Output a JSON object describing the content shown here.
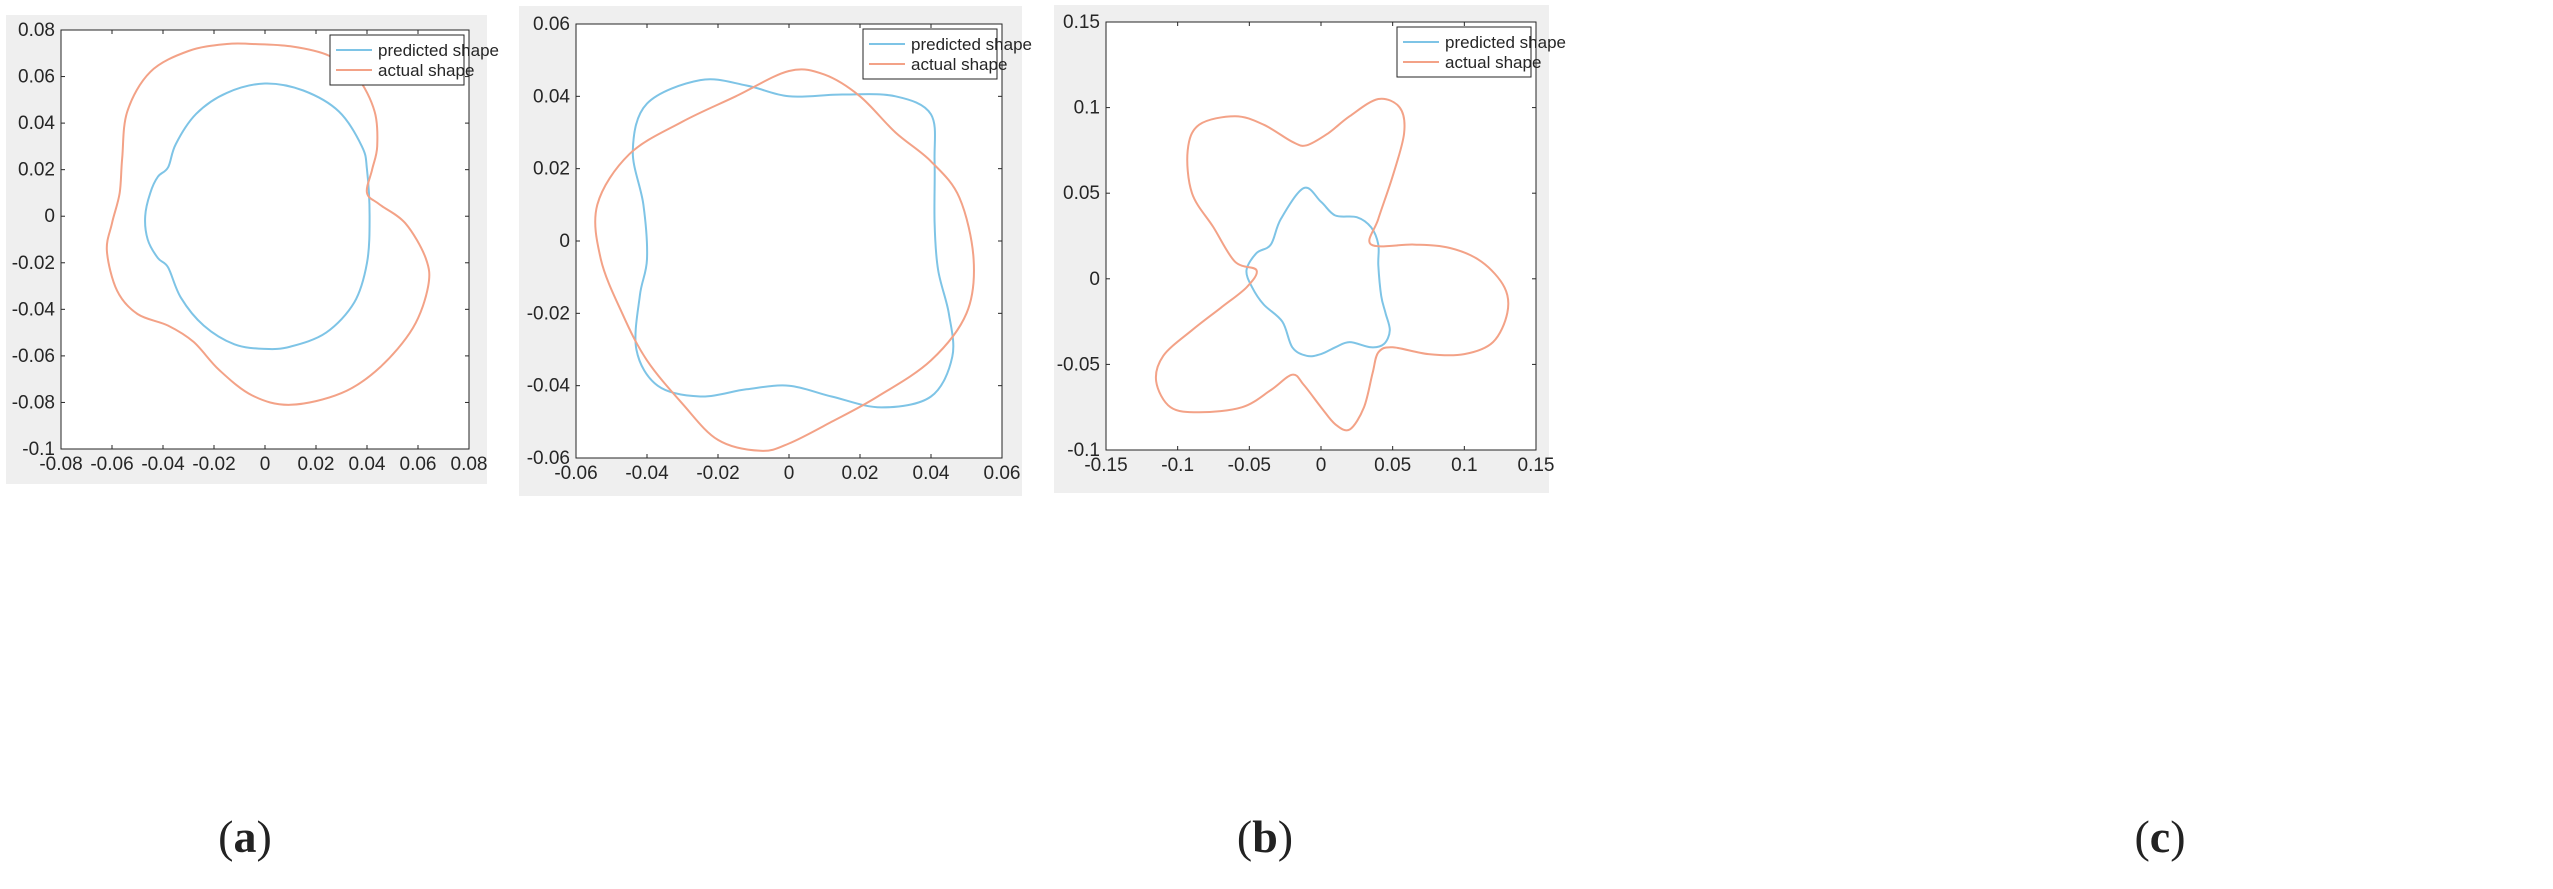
{
  "colors": {
    "predicted": "#7ec4e6",
    "actual": "#f3a287",
    "axis": "#262626",
    "panel_bg": "#efefef",
    "plot_bg": "#ffffff"
  },
  "chart_data": [
    {
      "type": "line",
      "caption": {
        "open": "(",
        "letter": "a",
        "close": ")"
      },
      "xlim": [
        -0.08,
        0.08
      ],
      "ylim": [
        -0.1,
        0.08
      ],
      "xticks": [
        -0.08,
        -0.06,
        -0.04,
        -0.02,
        0,
        0.02,
        0.04,
        0.06,
        0.08
      ],
      "yticks": [
        -0.1,
        -0.08,
        -0.06,
        -0.04,
        -0.02,
        0,
        0.02,
        0.04,
        0.06,
        0.08
      ],
      "xtick_labels": [
        "-0.08",
        "-0.06",
        "-0.04",
        "-0.02",
        "0",
        "0.02",
        "0.04",
        "0.06",
        "0.08"
      ],
      "ytick_labels": [
        "-0.1",
        "-0.08",
        "-0.06",
        "-0.04",
        "-0.02",
        "0",
        "0.02",
        "0.04",
        "0.06",
        "0.08"
      ],
      "grid": false,
      "legend_position": "top-right",
      "series": [
        {
          "name": "predicted shape",
          "color": "predicted",
          "closed": true,
          "points": [
            [
              0.0,
              0.057
            ],
            [
              0.015,
              0.054
            ],
            [
              0.029,
              0.045
            ],
            [
              0.038,
              0.03
            ],
            [
              0.04,
              0.02
            ],
            [
              0.041,
              0.0
            ],
            [
              0.04,
              -0.02
            ],
            [
              0.035,
              -0.037
            ],
            [
              0.024,
              -0.05
            ],
            [
              0.01,
              -0.056
            ],
            [
              0.0,
              -0.057
            ],
            [
              -0.012,
              -0.055
            ],
            [
              -0.024,
              -0.047
            ],
            [
              -0.033,
              -0.035
            ],
            [
              -0.038,
              -0.022
            ],
            [
              -0.042,
              -0.018
            ],
            [
              -0.046,
              -0.01
            ],
            [
              -0.047,
              0.0
            ],
            [
              -0.045,
              0.01
            ],
            [
              -0.042,
              0.017
            ],
            [
              -0.038,
              0.021
            ],
            [
              -0.035,
              0.031
            ],
            [
              -0.027,
              0.044
            ],
            [
              -0.015,
              0.053
            ]
          ]
        },
        {
          "name": "actual shape",
          "color": "actual",
          "closed": true,
          "points": [
            [
              -0.005,
              0.074
            ],
            [
              0.01,
              0.073
            ],
            [
              0.025,
              0.069
            ],
            [
              0.036,
              0.06
            ],
            [
              0.043,
              0.045
            ],
            [
              0.044,
              0.03
            ],
            [
              0.042,
              0.02
            ],
            [
              0.04,
              0.01
            ],
            [
              0.045,
              0.005
            ],
            [
              0.055,
              -0.003
            ],
            [
              0.063,
              -0.018
            ],
            [
              0.064,
              -0.03
            ],
            [
              0.058,
              -0.048
            ],
            [
              0.045,
              -0.065
            ],
            [
              0.03,
              -0.076
            ],
            [
              0.01,
              -0.081
            ],
            [
              -0.005,
              -0.077
            ],
            [
              -0.018,
              -0.066
            ],
            [
              -0.028,
              -0.054
            ],
            [
              -0.038,
              -0.047
            ],
            [
              -0.05,
              -0.042
            ],
            [
              -0.058,
              -0.032
            ],
            [
              -0.062,
              -0.015
            ],
            [
              -0.06,
              -0.003
            ],
            [
              -0.057,
              0.01
            ],
            [
              -0.056,
              0.025
            ],
            [
              -0.054,
              0.045
            ],
            [
              -0.045,
              0.062
            ],
            [
              -0.03,
              0.071
            ],
            [
              -0.015,
              0.074
            ]
          ]
        }
      ]
    },
    {
      "type": "line",
      "caption": {
        "open": "(",
        "letter": "b",
        "close": ")"
      },
      "xlim": [
        -0.06,
        0.06
      ],
      "ylim": [
        -0.06,
        0.06
      ],
      "xticks": [
        -0.06,
        -0.04,
        -0.02,
        0,
        0.02,
        0.04,
        0.06
      ],
      "yticks": [
        -0.06,
        -0.04,
        -0.02,
        0,
        0.02,
        0.04,
        0.06
      ],
      "xtick_labels": [
        "-0.06",
        "-0.04",
        "-0.02",
        "0",
        "0.02",
        "0.04",
        "0.06"
      ],
      "ytick_labels": [
        "-0.06",
        "-0.04",
        "-0.02",
        "0",
        "0.02",
        "0.04",
        "0.06"
      ],
      "grid": false,
      "legend_position": "top-right",
      "series": [
        {
          "name": "predicted shape",
          "color": "predicted",
          "closed": true,
          "points": [
            [
              0.0,
              0.04
            ],
            [
              0.015,
              0.0405
            ],
            [
              0.03,
              0.04
            ],
            [
              0.04,
              0.035
            ],
            [
              0.041,
              0.022
            ],
            [
              0.041,
              0.005
            ],
            [
              0.042,
              -0.008
            ],
            [
              0.045,
              -0.02
            ],
            [
              0.046,
              -0.032
            ],
            [
              0.04,
              -0.043
            ],
            [
              0.026,
              -0.046
            ],
            [
              0.012,
              -0.043
            ],
            [
              0.0,
              -0.04
            ],
            [
              -0.012,
              -0.041
            ],
            [
              -0.025,
              -0.043
            ],
            [
              -0.037,
              -0.04
            ],
            [
              -0.043,
              -0.03
            ],
            [
              -0.042,
              -0.015
            ],
            [
              -0.04,
              -0.005
            ],
            [
              -0.041,
              0.01
            ],
            [
              -0.044,
              0.025
            ],
            [
              -0.04,
              0.038
            ],
            [
              -0.025,
              0.0445
            ],
            [
              -0.012,
              0.043
            ]
          ]
        },
        {
          "name": "actual shape",
          "color": "actual",
          "closed": true,
          "points": [
            [
              0.0,
              0.047
            ],
            [
              0.01,
              0.046
            ],
            [
              0.02,
              0.04
            ],
            [
              0.03,
              0.03
            ],
            [
              0.04,
              0.022
            ],
            [
              0.048,
              0.012
            ],
            [
              0.052,
              -0.005
            ],
            [
              0.05,
              -0.02
            ],
            [
              0.04,
              -0.033
            ],
            [
              0.025,
              -0.043
            ],
            [
              0.012,
              -0.05
            ],
            [
              0.0,
              -0.056
            ],
            [
              -0.008,
              -0.058
            ],
            [
              -0.02,
              -0.055
            ],
            [
              -0.03,
              -0.045
            ],
            [
              -0.04,
              -0.033
            ],
            [
              -0.047,
              -0.02
            ],
            [
              -0.053,
              -0.005
            ],
            [
              -0.054,
              0.01
            ],
            [
              -0.045,
              0.024
            ],
            [
              -0.03,
              0.033
            ],
            [
              -0.015,
              0.04
            ]
          ]
        }
      ]
    },
    {
      "type": "line",
      "caption": {
        "open": "(",
        "letter": "c",
        "close": ")"
      },
      "xlim": [
        -0.15,
        0.15
      ],
      "ylim": [
        -0.1,
        0.15
      ],
      "xticks": [
        -0.15,
        -0.1,
        -0.05,
        0,
        0.05,
        0.1,
        0.15
      ],
      "yticks": [
        -0.1,
        -0.05,
        0,
        0.05,
        0.1,
        0.15
      ],
      "xtick_labels": [
        "-0.15",
        "-0.1",
        "-0.05",
        "0",
        "0.05",
        "0.1",
        "0.15"
      ],
      "ytick_labels": [
        "-0.1",
        "-0.05",
        "0",
        "0.05",
        "0.1",
        "0.15"
      ],
      "grid": false,
      "legend_position": "top-right",
      "series": [
        {
          "name": "predicted shape",
          "color": "predicted",
          "closed": true,
          "points": [
            [
              -0.012,
              0.053
            ],
            [
              0.0,
              0.045
            ],
            [
              0.01,
              0.037
            ],
            [
              0.025,
              0.036
            ],
            [
              0.035,
              0.03
            ],
            [
              0.04,
              0.02
            ],
            [
              0.04,
              0.008
            ],
            [
              0.042,
              -0.01
            ],
            [
              0.045,
              -0.02
            ],
            [
              0.048,
              -0.03
            ],
            [
              0.044,
              -0.038
            ],
            [
              0.035,
              -0.04
            ],
            [
              0.02,
              -0.037
            ],
            [
              0.01,
              -0.04
            ],
            [
              0.0,
              -0.044
            ],
            [
              -0.01,
              -0.045
            ],
            [
              -0.02,
              -0.04
            ],
            [
              -0.027,
              -0.025
            ],
            [
              -0.04,
              -0.015
            ],
            [
              -0.048,
              -0.005
            ],
            [
              -0.052,
              0.005
            ],
            [
              -0.045,
              0.015
            ],
            [
              -0.035,
              0.02
            ],
            [
              -0.028,
              0.035
            ]
          ]
        },
        {
          "name": "actual shape",
          "color": "actual",
          "closed": true,
          "points": [
            [
              0.035,
              0.02
            ],
            [
              0.065,
              0.02
            ],
            [
              0.09,
              0.018
            ],
            [
              0.112,
              0.01
            ],
            [
              0.128,
              -0.005
            ],
            [
              0.13,
              -0.02
            ],
            [
              0.12,
              -0.037
            ],
            [
              0.1,
              -0.044
            ],
            [
              0.075,
              -0.044
            ],
            [
              0.05,
              -0.04
            ],
            [
              0.04,
              -0.043
            ],
            [
              0.036,
              -0.055
            ],
            [
              0.03,
              -0.075
            ],
            [
              0.02,
              -0.088
            ],
            [
              0.01,
              -0.085
            ],
            [
              0.0,
              -0.075
            ],
            [
              -0.012,
              -0.062
            ],
            [
              -0.02,
              -0.056
            ],
            [
              -0.035,
              -0.065
            ],
            [
              -0.055,
              -0.075
            ],
            [
              -0.085,
              -0.078
            ],
            [
              -0.105,
              -0.075
            ],
            [
              -0.115,
              -0.06
            ],
            [
              -0.11,
              -0.045
            ],
            [
              -0.09,
              -0.03
            ],
            [
              -0.07,
              -0.017
            ],
            [
              -0.052,
              -0.005
            ],
            [
              -0.045,
              0.005
            ],
            [
              -0.06,
              0.01
            ],
            [
              -0.075,
              0.03
            ],
            [
              -0.09,
              0.05
            ],
            [
              -0.093,
              0.075
            ],
            [
              -0.085,
              0.09
            ],
            [
              -0.06,
              0.095
            ],
            [
              -0.04,
              0.09
            ],
            [
              -0.02,
              0.08
            ],
            [
              -0.01,
              0.078
            ],
            [
              0.005,
              0.085
            ],
            [
              0.02,
              0.095
            ],
            [
              0.04,
              0.105
            ],
            [
              0.055,
              0.1
            ],
            [
              0.058,
              0.085
            ],
            [
              0.05,
              0.06
            ],
            [
              0.04,
              0.035
            ]
          ]
        }
      ]
    }
  ]
}
